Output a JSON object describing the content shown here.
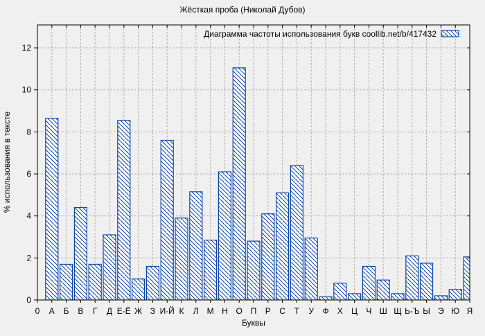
{
  "figure": {
    "title": "Жёсткая проба (Николай Дубов)"
  },
  "chart_data": {
    "type": "bar",
    "title": "Жёсткая проба (Николай Дубов)",
    "legend": "Диаграмма частоты использования букв  coollib.net/b/417432",
    "legend_position": "top-right-inside",
    "xlabel": "Буквы",
    "ylabel": "% использования в тексте",
    "x_first_tick_label": "0",
    "categories": [
      "А",
      "Б",
      "В",
      "Г",
      "Д",
      "Е-Ё",
      "Ж",
      "З",
      "И-Й",
      "К",
      "Л",
      "М",
      "Н",
      "О",
      "П",
      "Р",
      "С",
      "Т",
      "У",
      "Ф",
      "Х",
      "Ц",
      "Ч",
      "Ш",
      "Щ",
      "Ь-Ъ",
      "Ы",
      "Э",
      "Ю",
      "Я"
    ],
    "values": [
      8.65,
      1.7,
      4.4,
      1.7,
      3.1,
      8.55,
      1.0,
      1.6,
      7.6,
      3.9,
      5.15,
      2.85,
      6.1,
      11.05,
      2.8,
      4.1,
      5.1,
      6.4,
      2.95,
      0.15,
      0.8,
      0.3,
      1.6,
      0.95,
      0.3,
      2.1,
      1.75,
      0.2,
      0.5,
      2.05
    ],
    "y_ticks": [
      0,
      2,
      4,
      6,
      8,
      10,
      12
    ],
    "ylim": [
      0,
      13.09
    ],
    "grid": true,
    "hatch": "diagonal-backslash",
    "colors": {
      "bar_stroke": "#0f46a6",
      "bar_fill": "#ffffff",
      "background": "#f0f0f0",
      "grid": "#a6a6a6",
      "axis": "#000000"
    }
  }
}
